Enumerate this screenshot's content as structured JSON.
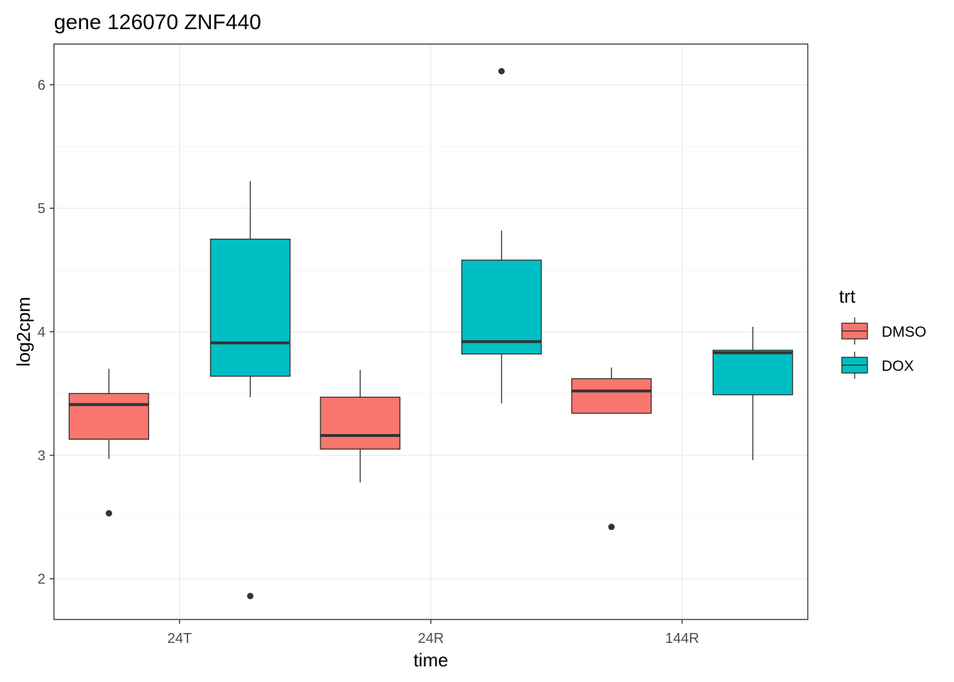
{
  "chart_data": {
    "type": "boxplot",
    "title": "gene 126070 ZNF440",
    "xlabel": "time",
    "ylabel": "log2cpm",
    "categories": [
      "24T",
      "24R",
      "144R"
    ],
    "ylim": [
      1.67,
      6.33
    ],
    "y_ticks": [
      2,
      3,
      4,
      5,
      6
    ],
    "grid": true,
    "legend": {
      "title": "trt",
      "position": "right",
      "entries": [
        {
          "label": "DMSO",
          "color": "#F8766D"
        },
        {
          "label": "DOX",
          "color": "#00BFC4"
        }
      ]
    },
    "series": [
      {
        "name": "DMSO",
        "color": "#F8766D",
        "boxes": [
          {
            "category": "24T",
            "lower_whisker": 2.97,
            "q1": 3.13,
            "median": 3.41,
            "q3": 3.5,
            "upper_whisker": 3.7,
            "outliers": [
              2.53
            ]
          },
          {
            "category": "24R",
            "lower_whisker": 2.78,
            "q1": 3.05,
            "median": 3.16,
            "q3": 3.47,
            "upper_whisker": 3.69,
            "outliers": []
          },
          {
            "category": "144R",
            "lower_whisker": 3.34,
            "q1": 3.34,
            "median": 3.52,
            "q3": 3.62,
            "upper_whisker": 3.71,
            "outliers": [
              2.42
            ]
          }
        ]
      },
      {
        "name": "DOX",
        "color": "#00BFC4",
        "boxes": [
          {
            "category": "24T",
            "lower_whisker": 3.47,
            "q1": 3.64,
            "median": 3.91,
            "q3": 4.75,
            "upper_whisker": 5.22,
            "outliers": [
              1.86
            ]
          },
          {
            "category": "24R",
            "lower_whisker": 3.42,
            "q1": 3.82,
            "median": 3.92,
            "q3": 4.58,
            "upper_whisker": 4.82,
            "outliers": [
              6.11
            ]
          },
          {
            "category": "144R",
            "lower_whisker": 2.96,
            "q1": 3.49,
            "median": 3.83,
            "q3": 3.85,
            "upper_whisker": 4.04,
            "outliers": []
          }
        ]
      }
    ]
  }
}
